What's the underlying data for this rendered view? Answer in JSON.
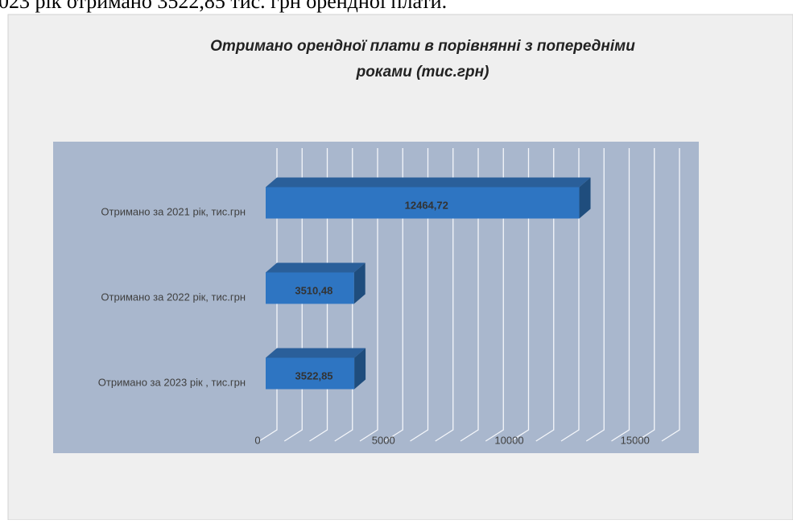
{
  "header_text": "023 рік отримано 3522,85 тис. грн орендної плати.",
  "chart_data": {
    "type": "bar3d",
    "title": "Отримано орендної плати в порівнянні з попередніми роками (тис.грн)",
    "categories": [
      "Отримано за 2021 рік, тис.грн",
      "Отримано за 2022 рік, тис.грн",
      "Отримано за 2023 рік , тис.грн"
    ],
    "values": [
      12464.72,
      3510.48,
      3522.85
    ],
    "value_labels": [
      "12464,72",
      "3510,48",
      "3522,85"
    ],
    "color": "#2e75c2",
    "xlim": [
      0,
      16000
    ],
    "xticks": [
      0,
      5000,
      10000,
      15000
    ],
    "minor_xticks": [
      0,
      1000,
      2000,
      3000,
      4000,
      5000,
      6000,
      7000,
      8000,
      9000,
      10000,
      11000,
      12000,
      13000,
      14000,
      15000,
      16000
    ],
    "grid": true
  }
}
